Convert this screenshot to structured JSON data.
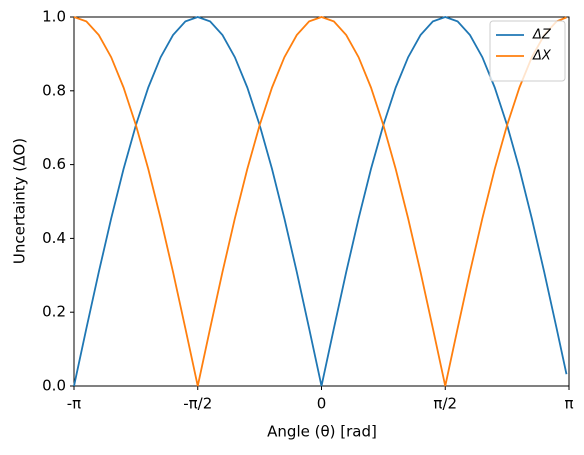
{
  "chart_data": {
    "type": "line",
    "xlabel": "Angle (θ) [rad]",
    "ylabel": "Uncertainty (ΔO)",
    "x": [
      -3.142,
      -2.985,
      -2.827,
      -2.67,
      -2.513,
      -2.356,
      -2.199,
      -2.042,
      -1.885,
      -1.728,
      -1.571,
      -1.414,
      -1.257,
      -1.1,
      -0.942,
      -0.785,
      -0.628,
      -0.471,
      -0.314,
      -0.157,
      0,
      0.157,
      0.314,
      0.471,
      0.628,
      0.785,
      0.942,
      1.1,
      1.257,
      1.414,
      1.571,
      1.728,
      1.885,
      2.042,
      2.199,
      2.356,
      2.513,
      2.67,
      2.827,
      2.985,
      3.11
    ],
    "series": [
      {
        "name": "ΔZ",
        "color": "#1f77b4",
        "values": [
          0,
          0.156,
          0.309,
          0.454,
          0.588,
          0.707,
          0.809,
          0.891,
          0.951,
          0.988,
          1,
          0.988,
          0.951,
          0.891,
          0.809,
          0.707,
          0.588,
          0.454,
          0.309,
          0.156,
          0,
          0.156,
          0.309,
          0.454,
          0.588,
          0.707,
          0.809,
          0.891,
          0.951,
          0.988,
          1,
          0.988,
          0.951,
          0.891,
          0.809,
          0.707,
          0.588,
          0.454,
          0.309,
          0.156,
          0.032
        ]
      },
      {
        "name": "ΔX",
        "color": "#ff7f0e",
        "values": [
          1,
          0.988,
          0.951,
          0.891,
          0.809,
          0.707,
          0.588,
          0.454,
          0.309,
          0.156,
          0,
          0.156,
          0.309,
          0.454,
          0.588,
          0.707,
          0.809,
          0.891,
          0.951,
          0.988,
          1,
          0.988,
          0.951,
          0.891,
          0.809,
          0.707,
          0.588,
          0.454,
          0.309,
          0.156,
          0,
          0.156,
          0.309,
          0.454,
          0.588,
          0.707,
          0.809,
          0.891,
          0.951,
          0.988,
          0.999
        ]
      }
    ],
    "xlim": [
      -3.142,
      3.142
    ],
    "xticks": [
      {
        "value": -3.142,
        "label": "-π"
      },
      {
        "value": -1.571,
        "label": "-π/2"
      },
      {
        "value": 0,
        "label": "0"
      },
      {
        "value": 1.571,
        "label": "π/2"
      },
      {
        "value": 3.142,
        "label": "π"
      }
    ],
    "ylim": [
      0,
      1
    ],
    "yticks": [
      {
        "value": 0,
        "label": "0.0"
      },
      {
        "value": 0.2,
        "label": "0.2"
      },
      {
        "value": 0.4,
        "label": "0.4"
      },
      {
        "value": 0.6,
        "label": "0.6"
      },
      {
        "value": 0.8,
        "label": "0.8"
      },
      {
        "value": 1,
        "label": "1.0"
      }
    ],
    "legend": "upper right",
    "grid": false
  }
}
